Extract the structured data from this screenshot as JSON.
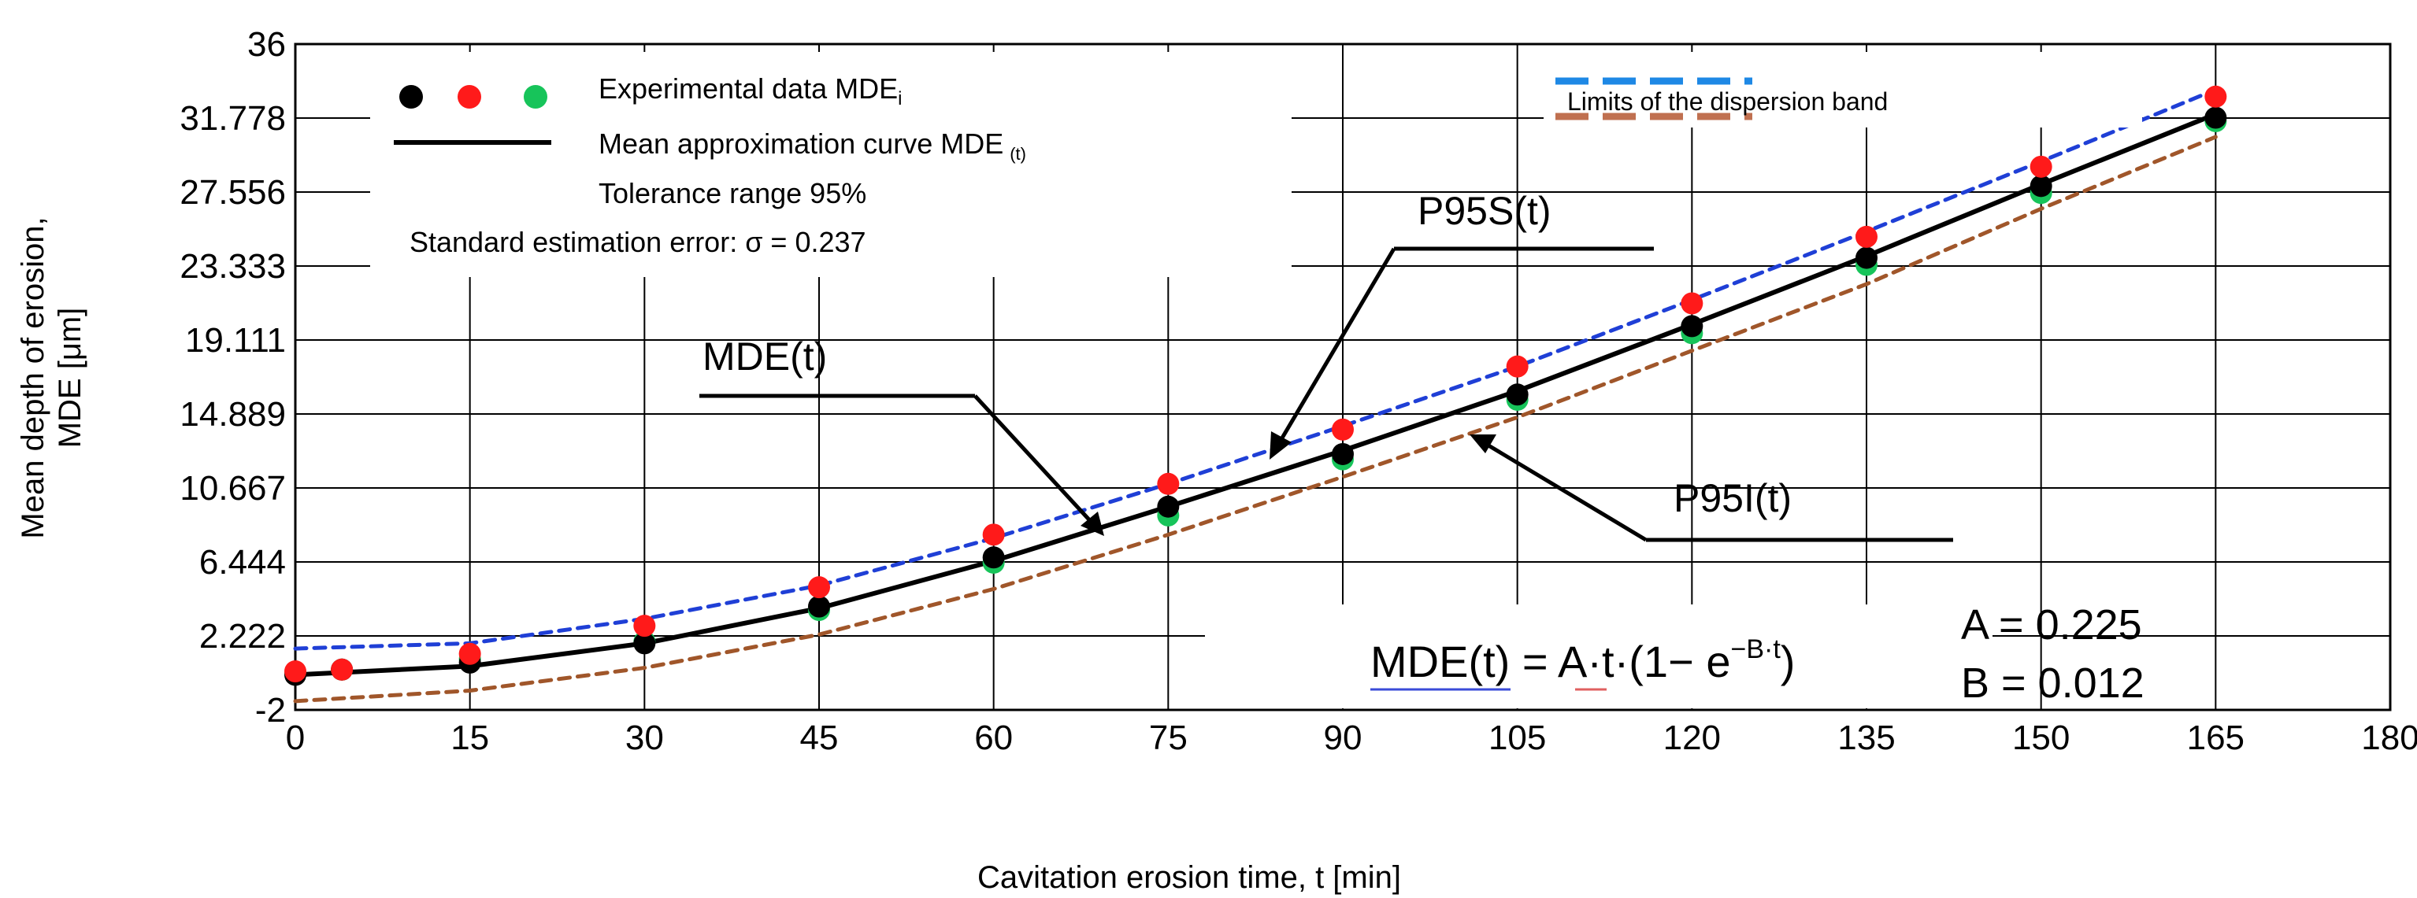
{
  "chart_data": {
    "type": "line",
    "xlabel": "Cavitation erosion time, t [min]",
    "ylabel_line1": "Mean depth of erosion,",
    "ylabel_line2": "MDE [μm]",
    "xlim": [
      0,
      180
    ],
    "ylim": [
      -2,
      36
    ],
    "x_ticks": [
      0,
      15,
      30,
      45,
      60,
      75,
      90,
      105,
      120,
      135,
      150,
      165,
      180
    ],
    "x_tick_labels": [
      "0",
      "15",
      "30",
      "45",
      "60",
      "75",
      "90",
      "105",
      "120",
      "135",
      "150",
      "165",
      "180"
    ],
    "y_ticks": [
      -2,
      2.222,
      6.444,
      10.667,
      14.889,
      19.111,
      23.333,
      27.556,
      31.778,
      36
    ],
    "y_tick_labels": [
      "-2",
      "2.222",
      "6.444",
      "10.667",
      "14.889",
      "19.111",
      "23.333",
      "27.556",
      "31.778",
      "36"
    ],
    "grid": true,
    "curves": {
      "x_values": [
        0,
        15,
        30,
        45,
        60,
        75,
        90,
        105,
        120,
        135,
        150,
        165
      ],
      "mean": {
        "name": "Mean approximation curve MDE (t)",
        "color": "#000000",
        "values": [
          0.0,
          0.5,
          1.8,
          3.8,
          6.5,
          9.6,
          12.8,
          16.2,
          20.0,
          23.9,
          28.0,
          32.0
        ]
      },
      "upper": {
        "name": "P95S(t)",
        "color": "#1f3fd6",
        "values": [
          1.5,
          1.8,
          3.2,
          5.1,
          7.8,
          10.9,
          14.2,
          17.6,
          21.4,
          25.3,
          29.3,
          33.4
        ]
      },
      "lower": {
        "name": "P95I(t)",
        "color": "#a0562a",
        "values": [
          -1.5,
          -0.9,
          0.4,
          2.3,
          4.9,
          8.0,
          11.3,
          14.7,
          18.5,
          22.3,
          26.6,
          30.7
        ]
      }
    },
    "series": [
      {
        "name": "Experimental data MDE black",
        "color": "#000000",
        "x": [
          0,
          4,
          15,
          30,
          45,
          60,
          75,
          90,
          105,
          120,
          135,
          150,
          165
        ],
        "y": [
          0.0,
          0.3,
          0.7,
          1.8,
          3.9,
          6.7,
          9.6,
          12.6,
          16.0,
          19.9,
          23.8,
          27.9,
          31.8
        ]
      },
      {
        "name": "Experimental data MDE red",
        "color": "#ff1a1a",
        "x": [
          0,
          4,
          15,
          30,
          45,
          60,
          75,
          90,
          105,
          120,
          135,
          150,
          165
        ],
        "y": [
          0.2,
          0.3,
          1.2,
          2.8,
          5.0,
          8.0,
          10.9,
          14.0,
          17.6,
          21.2,
          25.0,
          29.0,
          33.0
        ]
      },
      {
        "name": "Experimental data MDE green",
        "color": "#17c45a",
        "x": [
          0,
          4,
          15,
          30,
          45,
          60,
          75,
          90,
          105,
          120,
          135,
          150,
          165
        ],
        "y": [
          0.1,
          0.3,
          0.9,
          1.9,
          3.7,
          6.4,
          9.1,
          12.3,
          15.7,
          19.5,
          23.4,
          27.5,
          31.6
        ]
      }
    ],
    "legend": {
      "experimental": "Experimental data MDE",
      "experimental_sub": "i",
      "mean_curve": "Mean approximation curve MDE",
      "mean_curve_sub": "(t)",
      "tolerance": "Tolerance range 95%",
      "std_error": "Standard estimation error: σ = 0.237",
      "limits": "Limits of the dispersion band",
      "limits_upper_color": "#1e88e5",
      "limits_lower_color": "#c07050"
    },
    "annotations": {
      "p95s": "P95S(t)",
      "p95i": "P95I(t)",
      "mde": "MDE(t)",
      "formula": {
        "lhs": "MDE(t)",
        "eq": " = ",
        "a": "A",
        "dot1": "·",
        "t": "t",
        "dot2": "·",
        "paren_open": "(",
        "one_minus": "1− e",
        "exponent": "−B·t",
        "paren_close": ")"
      },
      "param_a": "A = 0.225",
      "param_b": "B = 0.012"
    }
  }
}
